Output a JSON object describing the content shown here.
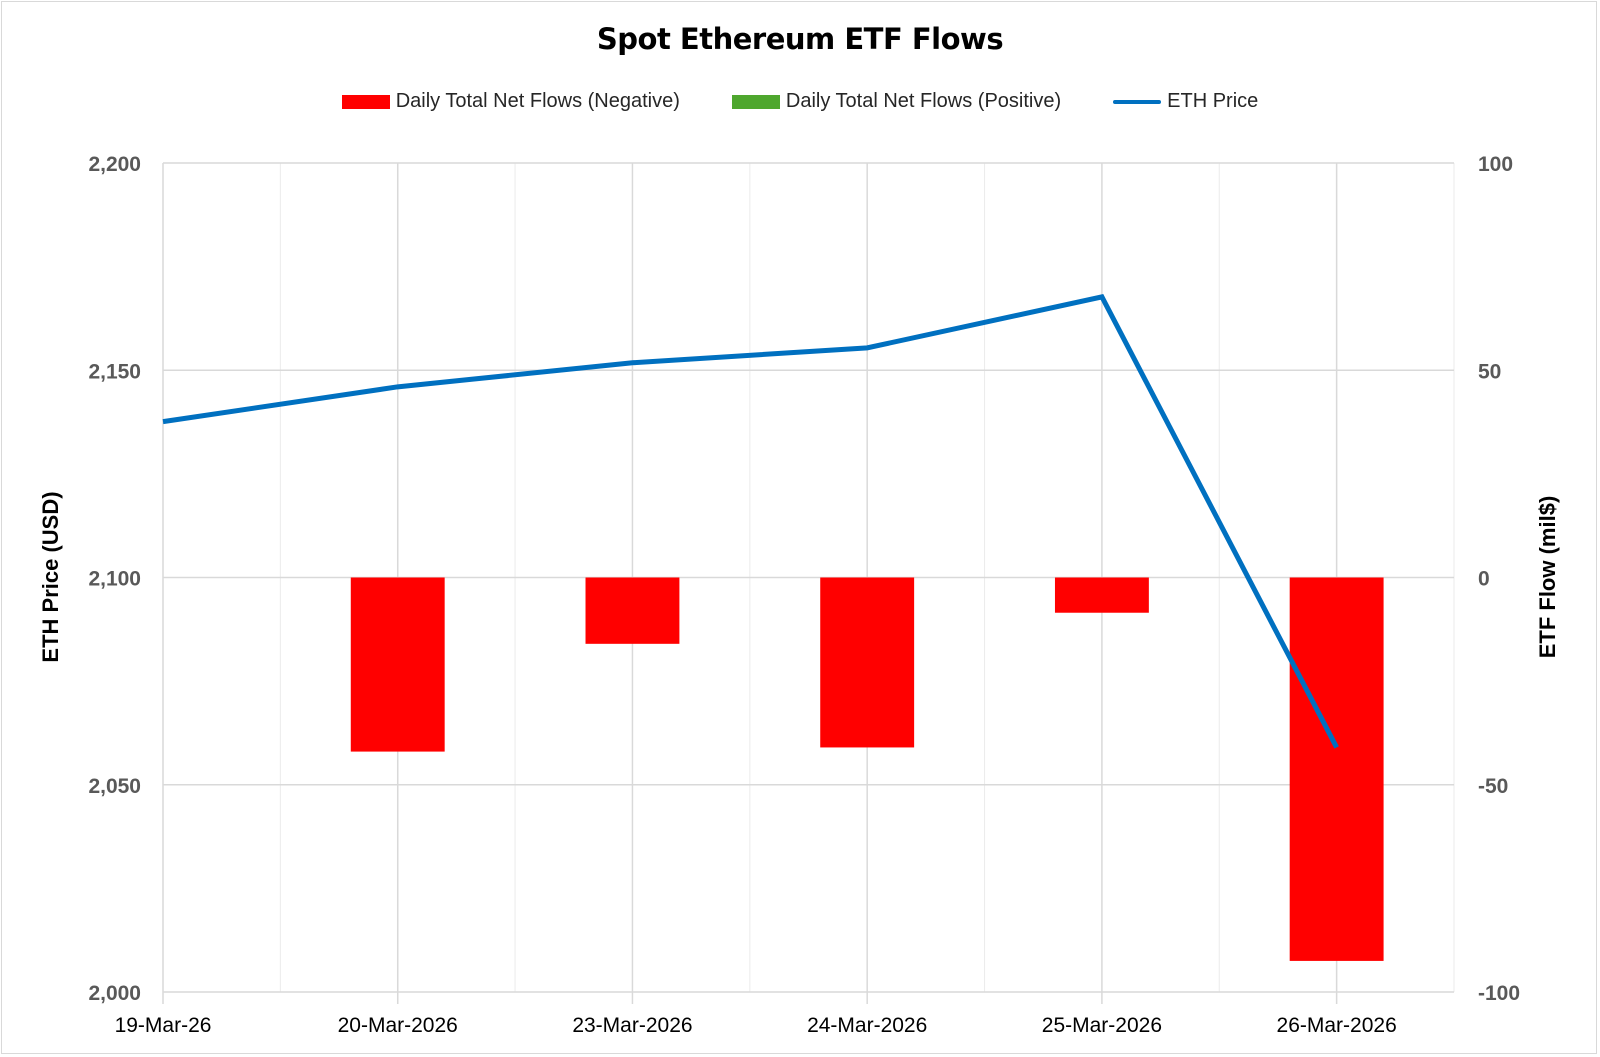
{
  "chart_data": {
    "type": "bar+line",
    "title": "Spot Ethereum ETF Flows",
    "categories": [
      "19-Mar-26",
      "20-Mar-2026",
      "23-Mar-2026",
      "24-Mar-2026",
      "25-Mar-2026",
      "26-Mar-2026"
    ],
    "legend": [
      {
        "label": "Daily Total Net Flows (Negative)",
        "color": "#ff0000",
        "kind": "bar"
      },
      {
        "label": "Daily Total Net Flows (Positive)",
        "color": "#4ea72e",
        "kind": "bar"
      },
      {
        "label": "ETH Price",
        "color": "#0070c0",
        "kind": "line"
      }
    ],
    "legend_position": "top",
    "series": [
      {
        "name": "Daily Total Net Flows (Negative)",
        "axis": "right",
        "values": [
          null,
          -42,
          -16,
          -41,
          -8.5,
          -92.5
        ]
      },
      {
        "name": "Daily Total Net Flows (Positive)",
        "axis": "right",
        "values": [
          null,
          null,
          null,
          null,
          null,
          null
        ]
      },
      {
        "name": "ETH Price",
        "axis": "left",
        "values": [
          2137.6,
          2146,
          2151.8,
          2155.4,
          2167.7,
          2059
        ]
      }
    ],
    "ylabel": "ETH Price (USD)",
    "y2label": "ETF Flow (mil$)",
    "ylim": [
      2000,
      2200
    ],
    "y2lim": [
      -100,
      100
    ],
    "yticks": [
      "2,000",
      "2,050",
      "2,100",
      "2,150",
      "2,200"
    ],
    "y2ticks": [
      "-100",
      "-50",
      "0",
      "50",
      "100"
    ],
    "grid": true
  }
}
